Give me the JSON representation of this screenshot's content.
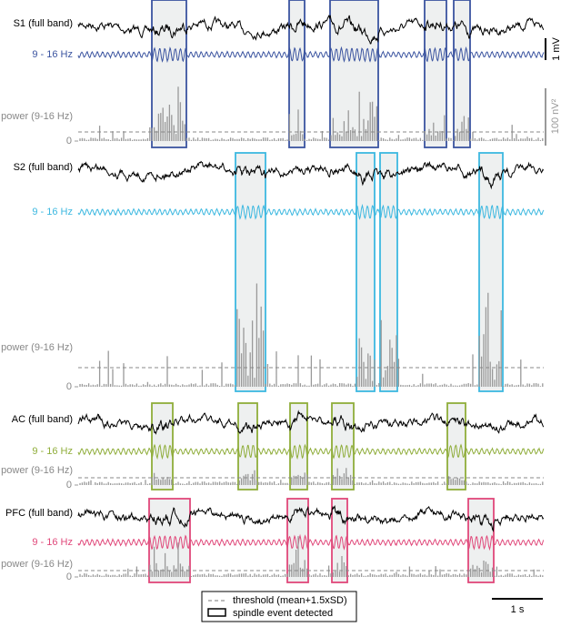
{
  "panels": [
    {
      "full_label": "S1 (full band)",
      "band_label": "9 - 16 Hz",
      "power_label": "power (9-16 Hz)",
      "zero_label": "0"
    },
    {
      "full_label": "S2 (full band)",
      "band_label": "9 - 16 Hz",
      "power_label": "power (9-16 Hz)",
      "zero_label": "0"
    },
    {
      "full_label": "AC (full band)",
      "band_label": "9 - 16 Hz",
      "power_label": "power (9-16 Hz)",
      "zero_label": "0"
    },
    {
      "full_label": "PFC (full band)",
      "band_label": "9 - 16 Hz",
      "power_label": "power (9-16 Hz)",
      "zero_label": "0"
    }
  ],
  "scale_bars": {
    "voltage": "1 mV",
    "power": "100 nV²",
    "time": "1 s"
  },
  "legend": {
    "threshold": "threshold (mean+1.5xSD)",
    "spindle": "spindle event detected"
  }
}
